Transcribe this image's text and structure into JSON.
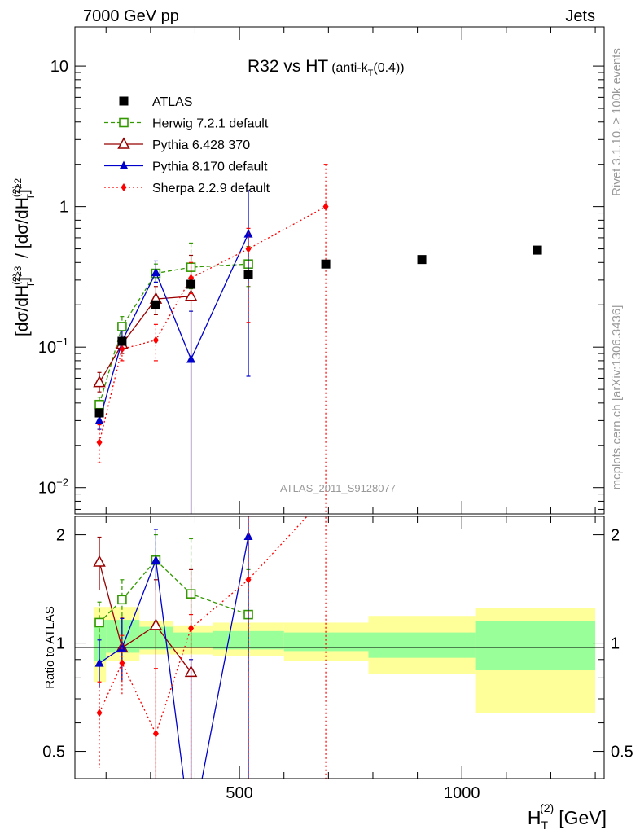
{
  "header": {
    "left": "7000 GeV pp",
    "right": "Jets"
  },
  "side_labels": {
    "rivet": "Rivet 3.1.10, ≥ 100k events",
    "mcplots": "mcplots.cern.ch [arXiv:1306.3436]"
  },
  "chart_data": {
    "type": "scatter",
    "title": "R32 vs HT",
    "title_suffix": "(anti-k",
    "title_suffix_sub": "T",
    "title_suffix_end": "(0.4))",
    "analysis": "ATLAS_2011_S9128077",
    "x_label_main": "H",
    "x_label_sub": "T",
    "x_label_sup": "(2)",
    "x_label_unit": "[GeV]",
    "y_label_text": "[dσ/dH(2)T]≥3 / [dσ/dH(2)T]≥2",
    "ratio_label": "Ratio to ATLAS",
    "x_range": [
      130,
      1320
    ],
    "y_range": [
      0.0065,
      19
    ],
    "y_scale": "log",
    "ratio_range": [
      0.42,
      2.25
    ],
    "ratio_scale": "log",
    "x_ticks": [
      {
        "v": 500,
        "label": "500"
      },
      {
        "v": 1000,
        "label": "1000"
      }
    ],
    "y_ticks": [
      {
        "v": 0.01,
        "base": "10",
        "exp": "−2"
      },
      {
        "v": 0.1,
        "base": "10",
        "exp": "−1"
      },
      {
        "v": 1,
        "base": "1",
        "exp": ""
      },
      {
        "v": 10,
        "base": "10",
        "exp": ""
      }
    ],
    "ratio_ticks": [
      {
        "v": 0.5,
        "label": "0.5"
      },
      {
        "v": 1,
        "label": "1"
      },
      {
        "v": 2,
        "label": "2"
      }
    ],
    "legend_position": "top-left",
    "data": {
      "name": "ATLAS",
      "points": [
        {
          "x": 185,
          "xlo": 172,
          "xhi": 200,
          "y": 0.034
        },
        {
          "x": 236,
          "xlo": 200,
          "xhi": 275,
          "y": 0.11
        },
        {
          "x": 312,
          "xlo": 275,
          "xhi": 350,
          "y": 0.2
        },
        {
          "x": 391,
          "xlo": 350,
          "xhi": 440,
          "y": 0.28
        },
        {
          "x": 520,
          "xlo": 440,
          "xhi": 600,
          "y": 0.33
        },
        {
          "x": 694,
          "xlo": 600,
          "xhi": 790,
          "y": 0.39
        },
        {
          "x": 910,
          "xlo": 790,
          "xhi": 1030,
          "y": 0.42
        },
        {
          "x": 1170,
          "xlo": 1030,
          "xhi": 1300,
          "y": 0.49
        }
      ],
      "band_stat": [
        {
          "xlo": 172,
          "xhi": 200,
          "lo": 0.89,
          "hi": 1.16
        },
        {
          "xlo": 200,
          "xhi": 275,
          "lo": 0.94,
          "hi": 1.16
        },
        {
          "xlo": 275,
          "xhi": 350,
          "lo": 0.96,
          "hi": 1.11
        },
        {
          "xlo": 350,
          "xhi": 440,
          "lo": 0.97,
          "hi": 1.07
        },
        {
          "xlo": 440,
          "xhi": 600,
          "lo": 0.96,
          "hi": 1.08
        },
        {
          "xlo": 600,
          "xhi": 790,
          "lo": 0.95,
          "hi": 1.07
        },
        {
          "xlo": 790,
          "xhi": 1030,
          "lo": 0.91,
          "hi": 1.07
        },
        {
          "xlo": 1030,
          "xhi": 1300,
          "lo": 0.84,
          "hi": 1.15
        }
      ],
      "band_total": [
        {
          "xlo": 172,
          "xhi": 200,
          "lo": 0.78,
          "hi": 1.26
        },
        {
          "xlo": 200,
          "xhi": 275,
          "lo": 0.89,
          "hi": 1.26
        },
        {
          "xlo": 275,
          "xhi": 350,
          "lo": 0.93,
          "hi": 1.15
        },
        {
          "xlo": 350,
          "xhi": 440,
          "lo": 0.93,
          "hi": 1.12
        },
        {
          "xlo": 440,
          "xhi": 600,
          "lo": 0.92,
          "hi": 1.14
        },
        {
          "xlo": 600,
          "xhi": 790,
          "lo": 0.89,
          "hi": 1.14
        },
        {
          "xlo": 790,
          "xhi": 1030,
          "lo": 0.82,
          "hi": 1.19
        },
        {
          "xlo": 1030,
          "xhi": 1300,
          "lo": 0.64,
          "hi": 1.25
        }
      ]
    },
    "series": [
      {
        "name": "Herwig 7.2.1 default",
        "color": "#339900",
        "dash": "5,3",
        "marker": "open-square",
        "x": [
          185,
          236,
          312,
          391,
          520
        ],
        "y": [
          0.039,
          0.14,
          0.335,
          0.37,
          0.39
        ],
        "err_lo": [
          0.035,
          0.12,
          0.29,
          0.26,
          0.27
        ],
        "err_hi": [
          0.044,
          0.165,
          0.39,
          0.55,
          0.52
        ],
        "ratio": [
          1.14,
          1.32,
          1.7,
          1.37,
          1.2
        ],
        "ratio_lo": [
          1.02,
          1.1,
          1.45,
          0.93,
          0.83
        ],
        "ratio_hi": [
          1.3,
          1.5,
          2.0,
          1.95,
          1.6
        ]
      },
      {
        "name": "Pythia 6.428 370",
        "color": "#990000",
        "dash": "",
        "marker": "open-triangle",
        "x": [
          185,
          236,
          312,
          391
        ],
        "y": [
          0.056,
          0.105,
          0.22,
          0.23
        ],
        "err_lo": [
          0.048,
          0.09,
          0.17,
          0.006
        ],
        "err_hi": [
          0.066,
          0.12,
          0.27,
          0.45
        ],
        "ratio": [
          1.68,
          0.97,
          1.12,
          0.83
        ],
        "ratio_lo": [
          1.4,
          0.78,
          0.3,
          0.3
        ],
        "ratio_hi": [
          1.97,
          1.18,
          1.5,
          1.6
        ]
      },
      {
        "name": "Pythia 8.170 default",
        "color": "#0000cc",
        "dash": "",
        "marker": "filled-triangle",
        "x": [
          185,
          236,
          312,
          391,
          520
        ],
        "y": [
          0.03,
          0.11,
          0.34,
          0.082,
          0.64
        ],
        "err_lo": [
          0.026,
          0.095,
          0.29,
          0.004,
          0.062
        ],
        "err_hi": [
          0.035,
          0.13,
          0.41,
          0.18,
          1.3
        ],
        "ratio": [
          0.88,
          0.97,
          1.7,
          0.29,
          1.98
        ],
        "ratio_lo": [
          0.75,
          0.79,
          1.4,
          0.3,
          0.3
        ],
        "ratio_hi": [
          1.02,
          1.17,
          2.07,
          0.9,
          2.3
        ]
      },
      {
        "name": "Sherpa 2.2.9 default",
        "color": "#ff0000",
        "dash": "2,3",
        "marker": "filled-diamond",
        "x": [
          185,
          236,
          312,
          391,
          520,
          694
        ],
        "y": [
          0.021,
          0.097,
          0.112,
          0.31,
          0.5,
          1.0
        ],
        "err_lo": [
          0.015,
          0.08,
          0.08,
          0.24,
          0.15,
          0.003
        ],
        "err_hi": [
          0.028,
          0.115,
          0.145,
          0.4,
          0.7,
          2.0
        ],
        "ratio": [
          0.64,
          0.88,
          0.56,
          1.1,
          1.5,
          2.56
        ],
        "ratio_lo": [
          0.45,
          0.72,
          0.3,
          0.3,
          0.3,
          0.3
        ],
        "ratio_hi": [
          0.78,
          1.05,
          0.85,
          1.2,
          2.3,
          2.3
        ]
      }
    ]
  }
}
